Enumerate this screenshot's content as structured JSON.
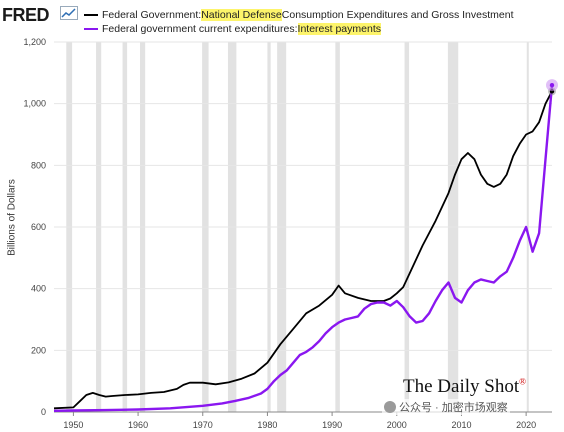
{
  "header": {
    "logo": "FRED",
    "logo_icon": "fred-chart-icon"
  },
  "legend": {
    "series1": {
      "prefix": "Federal Government: ",
      "highlight": "National Defense",
      "suffix": " Consumption Expenditures and Gross Investment",
      "color": "#000000"
    },
    "series2": {
      "prefix": "Federal government current expenditures: ",
      "highlight": "Interest payments",
      "suffix": "",
      "color": "#8a17f0"
    }
  },
  "watermark": {
    "brand": "The Daily Shot",
    "brand_mark": "®",
    "cn": "公众号 · 加密市场观察"
  },
  "chart_data": {
    "type": "line",
    "title": "",
    "xlabel": "",
    "ylabel": "Billions of Dollars",
    "xlim": [
      1947,
      2024
    ],
    "ylim": [
      0,
      1200
    ],
    "yticks": [
      0,
      200,
      400,
      600,
      800,
      1000,
      1200
    ],
    "ytick_labels": [
      "0",
      "200",
      "400",
      "600",
      "800",
      "1,000",
      "1,200"
    ],
    "xticks": [
      1950,
      1960,
      1970,
      1980,
      1990,
      2000,
      2010,
      2020
    ],
    "xtick_labels": [
      "1950",
      "1960",
      "1970",
      "1980",
      "1990",
      "2000",
      "2010",
      "2020"
    ],
    "grid": true,
    "recessions": [
      [
        1948.9,
        1949.8
      ],
      [
        1953.5,
        1954.3
      ],
      [
        1957.6,
        1958.3
      ],
      [
        1960.3,
        1961.1
      ],
      [
        1969.9,
        1970.9
      ],
      [
        1973.9,
        1975.2
      ],
      [
        1980.0,
        1980.5
      ],
      [
        1981.5,
        1982.9
      ],
      [
        1990.5,
        1991.2
      ],
      [
        2001.2,
        2001.9
      ],
      [
        2007.9,
        2009.5
      ],
      [
        2020.1,
        2020.4
      ]
    ],
    "series": [
      {
        "name": "Federal Government: National Defense Consumption Expenditures and Gross Investment",
        "color": "#000000",
        "points": [
          [
            1947,
            12
          ],
          [
            1950,
            15
          ],
          [
            1951,
            35
          ],
          [
            1952,
            55
          ],
          [
            1953,
            62
          ],
          [
            1954,
            55
          ],
          [
            1955,
            50
          ],
          [
            1956,
            52
          ],
          [
            1958,
            55
          ],
          [
            1960,
            57
          ],
          [
            1962,
            62
          ],
          [
            1964,
            65
          ],
          [
            1966,
            75
          ],
          [
            1967,
            88
          ],
          [
            1968,
            95
          ],
          [
            1970,
            95
          ],
          [
            1972,
            90
          ],
          [
            1974,
            96
          ],
          [
            1976,
            108
          ],
          [
            1978,
            125
          ],
          [
            1980,
            160
          ],
          [
            1982,
            220
          ],
          [
            1984,
            270
          ],
          [
            1986,
            320
          ],
          [
            1988,
            345
          ],
          [
            1990,
            380
          ],
          [
            1991,
            410
          ],
          [
            1992,
            385
          ],
          [
            1994,
            370
          ],
          [
            1996,
            360
          ],
          [
            1998,
            360
          ],
          [
            1999,
            368
          ],
          [
            2000,
            385
          ],
          [
            2001,
            405
          ],
          [
            2002,
            450
          ],
          [
            2004,
            540
          ],
          [
            2006,
            620
          ],
          [
            2008,
            710
          ],
          [
            2009,
            770
          ],
          [
            2010,
            820
          ],
          [
            2011,
            840
          ],
          [
            2012,
            820
          ],
          [
            2013,
            770
          ],
          [
            2014,
            740
          ],
          [
            2015,
            730
          ],
          [
            2016,
            740
          ],
          [
            2017,
            770
          ],
          [
            2018,
            830
          ],
          [
            2019,
            870
          ],
          [
            2020,
            900
          ],
          [
            2021,
            910
          ],
          [
            2022,
            940
          ],
          [
            2023,
            1000
          ],
          [
            2024,
            1040
          ]
        ]
      },
      {
        "name": "Federal government current expenditures: Interest payments",
        "color": "#8a17f0",
        "points": [
          [
            1947,
            4
          ],
          [
            1950,
            5
          ],
          [
            1955,
            6
          ],
          [
            1960,
            8
          ],
          [
            1965,
            12
          ],
          [
            1970,
            20
          ],
          [
            1973,
            28
          ],
          [
            1975,
            36
          ],
          [
            1977,
            45
          ],
          [
            1979,
            60
          ],
          [
            1980,
            75
          ],
          [
            1981,
            100
          ],
          [
            1982,
            120
          ],
          [
            1983,
            135
          ],
          [
            1984,
            160
          ],
          [
            1985,
            185
          ],
          [
            1986,
            195
          ],
          [
            1987,
            210
          ],
          [
            1988,
            230
          ],
          [
            1989,
            255
          ],
          [
            1990,
            275
          ],
          [
            1991,
            290
          ],
          [
            1992,
            300
          ],
          [
            1993,
            305
          ],
          [
            1994,
            310
          ],
          [
            1995,
            335
          ],
          [
            1996,
            350
          ],
          [
            1997,
            355
          ],
          [
            1998,
            355
          ],
          [
            1999,
            345
          ],
          [
            2000,
            360
          ],
          [
            2001,
            340
          ],
          [
            2002,
            310
          ],
          [
            2003,
            290
          ],
          [
            2004,
            295
          ],
          [
            2005,
            320
          ],
          [
            2006,
            360
          ],
          [
            2007,
            395
          ],
          [
            2008,
            420
          ],
          [
            2009,
            370
          ],
          [
            2010,
            355
          ],
          [
            2011,
            395
          ],
          [
            2012,
            420
          ],
          [
            2013,
            430
          ],
          [
            2014,
            425
          ],
          [
            2015,
            420
          ],
          [
            2016,
            440
          ],
          [
            2017,
            455
          ],
          [
            2018,
            500
          ],
          [
            2019,
            555
          ],
          [
            2020,
            600
          ],
          [
            2021,
            520
          ],
          [
            2022,
            580
          ],
          [
            2023,
            820
          ],
          [
            2024,
            1060
          ]
        ]
      }
    ]
  }
}
